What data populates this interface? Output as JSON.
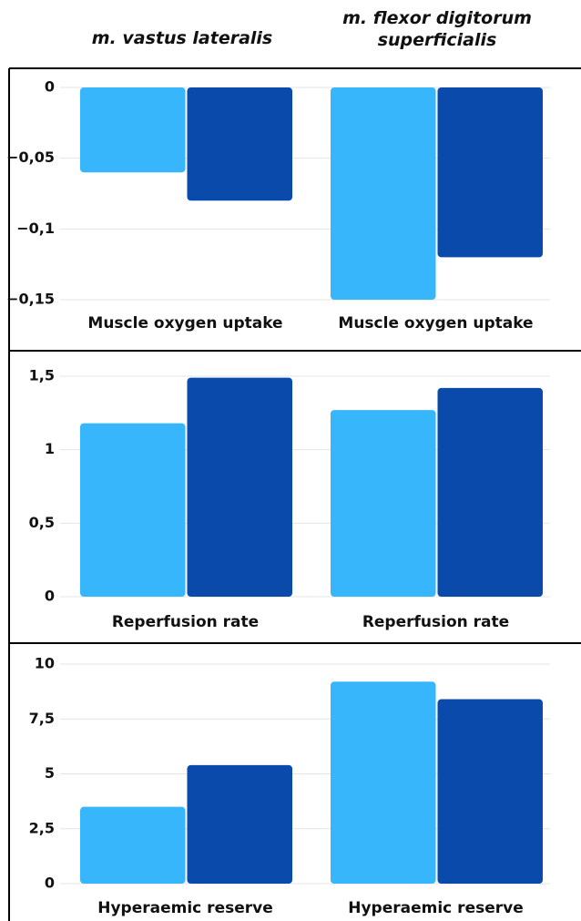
{
  "column_titles": [
    "m. vastus lateralis",
    "m. flexor digitorum superficialis"
  ],
  "chart_data": [
    {
      "type": "bar",
      "categories": [
        "Muscle oxygen uptake",
        "Muscle oxygen uptake"
      ],
      "series": [
        {
          "color": "#38b6fb",
          "values": [
            -0.06,
            -0.15
          ]
        },
        {
          "color": "#0a4aab",
          "values": [
            -0.08,
            -0.12
          ]
        }
      ],
      "ylim": [
        -0.15,
        0
      ],
      "yticks": [
        0,
        {
          "value": -0.05,
          "label": "−0,05"
        },
        {
          "value": -0.1,
          "label": "−0,1"
        },
        {
          "value": -0.15,
          "label": "−0,15"
        }
      ],
      "grid": true
    },
    {
      "type": "bar",
      "categories": [
        "Reperfusion rate",
        "Reperfusion rate"
      ],
      "series": [
        {
          "color": "#38b6fb",
          "values": [
            1.18,
            1.27
          ]
        },
        {
          "color": "#0a4aab",
          "values": [
            1.49,
            1.42
          ]
        }
      ],
      "ylim": [
        0,
        1.5
      ],
      "yticks": [
        0,
        {
          "value": 0.5,
          "label": "0,5"
        },
        1,
        {
          "value": 1.5,
          "label": "1,5"
        }
      ],
      "grid": true
    },
    {
      "type": "bar",
      "categories": [
        "Hyperaemic reserve",
        "Hyperaemic reserve"
      ],
      "series": [
        {
          "color": "#38b6fb",
          "values": [
            3.5,
            9.2
          ]
        },
        {
          "color": "#0a4aab",
          "values": [
            5.4,
            8.4
          ]
        }
      ],
      "ylim": [
        0,
        10
      ],
      "yticks": [
        0,
        {
          "value": 2.5,
          "label": "2,5"
        },
        5,
        {
          "value": 7.5,
          "label": "7,5"
        },
        10
      ],
      "grid": true
    }
  ]
}
